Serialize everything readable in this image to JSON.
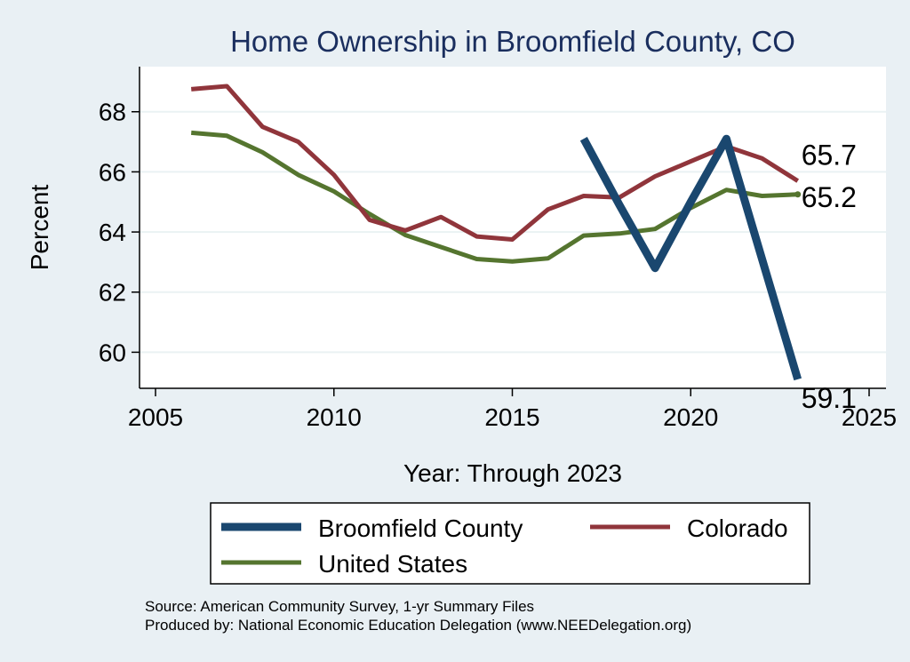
{
  "chart_data": {
    "type": "line",
    "title": "Home Ownership in Broomfield County, CO",
    "xlabel": "Year: Through 2023",
    "ylabel": "Percent",
    "xlim": [
      2005,
      2025
    ],
    "ylim": [
      58.8,
      69.5
    ],
    "x_ticks": [
      2005,
      2010,
      2015,
      2020,
      2025
    ],
    "y_ticks": [
      60,
      62,
      64,
      66,
      68
    ],
    "grid": true,
    "legend_position": "bottom",
    "series": [
      {
        "name": "Broomfield County",
        "color": "#1a476f",
        "x": [
          2017,
          2018,
          2019,
          2020,
          2021,
          2022,
          2023
        ],
        "values": [
          67.1,
          64.9,
          62.8,
          65.0,
          67.1,
          63.1,
          59.1
        ]
      },
      {
        "name": "Colorado",
        "color": "#90353b",
        "x": [
          2006,
          2007,
          2008,
          2009,
          2010,
          2011,
          2012,
          2013,
          2014,
          2015,
          2016,
          2017,
          2018,
          2019,
          2020,
          2021,
          2022,
          2023
        ],
        "values": [
          68.75,
          68.85,
          67.5,
          67.0,
          65.9,
          64.4,
          64.05,
          64.5,
          63.85,
          63.75,
          64.75,
          65.2,
          65.15,
          65.85,
          66.35,
          66.85,
          66.45,
          65.7
        ]
      },
      {
        "name": "United States",
        "color": "#55752f",
        "x": [
          2006,
          2007,
          2008,
          2009,
          2010,
          2011,
          2012,
          2013,
          2014,
          2015,
          2016,
          2017,
          2018,
          2019,
          2020,
          2021,
          2022,
          2023
        ],
        "values": [
          67.3,
          67.2,
          66.65,
          65.9,
          65.35,
          64.6,
          63.9,
          63.5,
          63.1,
          63.02,
          63.12,
          63.88,
          63.95,
          64.1,
          64.8,
          65.4,
          65.2,
          65.25
        ]
      }
    ],
    "end_labels": [
      {
        "series": "Colorado",
        "text": "65.7"
      },
      {
        "series": "United States",
        "text": "65.2"
      },
      {
        "series": "Broomfield County",
        "text": "59.1"
      }
    ]
  },
  "notes": {
    "source": "Source: American Community Survey, 1-yr Summary Files",
    "produced_by": "Produced by: National Economic Education Delegation (www.NEEDelegation.org)"
  }
}
